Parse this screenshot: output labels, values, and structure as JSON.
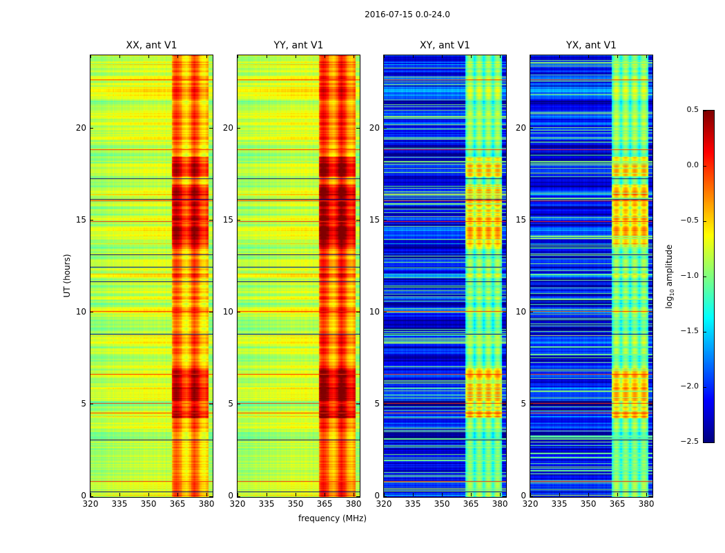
{
  "suptitle": "2016-07-15 0.0-24.0",
  "chart_data": {
    "type": "heatmap",
    "xlabel": "frequency (MHz)",
    "ylabel": "UT (hours)",
    "xlim": [
      320,
      383.2
    ],
    "ylim": [
      0,
      24
    ],
    "xticks": [
      320,
      335,
      350,
      365,
      380
    ],
    "yticks": [
      0,
      5,
      10,
      15,
      20
    ],
    "colorbar": {
      "label_prefix": "log",
      "label_sub": "10",
      "label_suffix": " amplitude",
      "colormap": "jet",
      "range": [
        -2.5,
        0.5
      ],
      "ticks": [
        "0.5",
        "0.0",
        "−0.5",
        "−1.0",
        "−1.5",
        "−2.0",
        "−2.5"
      ],
      "tick_values": [
        0.5,
        0.0,
        -0.5,
        -1.0,
        -1.5,
        -2.0,
        -2.5
      ]
    },
    "rfi_band_mhz": [
      362,
      381
    ],
    "red_line_hours": [
      0.85,
      4.6,
      5.1,
      6.7,
      10.1,
      15.0,
      16.1,
      18.9,
      22.7
    ],
    "dark_line_hours": [
      0.3,
      3.1,
      8.85,
      11.7,
      12.5,
      13.2,
      16.2,
      17.3
    ],
    "active_periods_hours": [
      [
        4.3,
        7.0
      ],
      [
        13.5,
        17.0
      ],
      [
        17.4,
        18.5
      ]
    ],
    "panels": [
      {
        "title": "XX, ant V1",
        "base_level": -0.75,
        "band_level": -0.35,
        "show_ylabels": true
      },
      {
        "title": "YY, ant V1",
        "base_level": -0.75,
        "band_level": -0.2,
        "show_ylabels": true
      },
      {
        "title": "XY, ant V1",
        "base_level": -2.15,
        "band_level": -1.1,
        "show_ylabels": true
      },
      {
        "title": "YX, ant V1",
        "base_level": -2.15,
        "band_level": -1.1,
        "show_ylabels": true
      }
    ]
  }
}
